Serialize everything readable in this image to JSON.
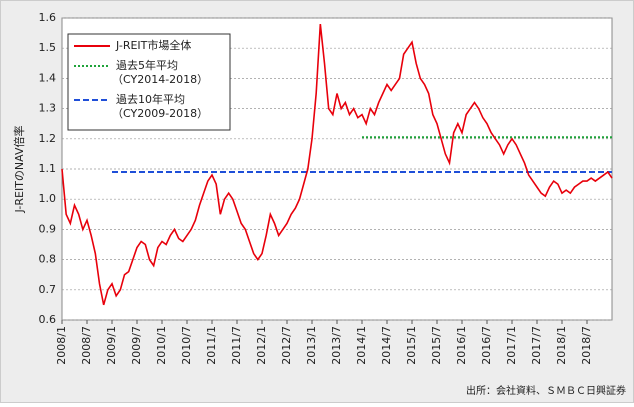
{
  "chart_data": {
    "type": "line",
    "y_label": "J-REITのNAV倍率",
    "source": "出所：会社資料、ＳＭＢＣ日興証券",
    "x": [
      "2008/1",
      "2008/2",
      "2008/3",
      "2008/4",
      "2008/5",
      "2008/6",
      "2008/7",
      "2008/8",
      "2008/9",
      "2008/10",
      "2008/11",
      "2008/12",
      "2009/1",
      "2009/2",
      "2009/3",
      "2009/4",
      "2009/5",
      "2009/6",
      "2009/7",
      "2009/8",
      "2009/9",
      "2009/10",
      "2009/11",
      "2009/12",
      "2010/1",
      "2010/2",
      "2010/3",
      "2010/4",
      "2010/5",
      "2010/6",
      "2010/7",
      "2010/8",
      "2010/9",
      "2010/10",
      "2010/11",
      "2010/12",
      "2011/1",
      "2011/2",
      "2011/3",
      "2011/4",
      "2011/5",
      "2011/6",
      "2011/7",
      "2011/8",
      "2011/9",
      "2011/10",
      "2011/11",
      "2011/12",
      "2012/1",
      "2012/2",
      "2012/3",
      "2012/4",
      "2012/5",
      "2012/6",
      "2012/7",
      "2012/8",
      "2012/9",
      "2012/10",
      "2012/11",
      "2012/12",
      "2013/1",
      "2013/2",
      "2013/3",
      "2013/4",
      "2013/5",
      "2013/6",
      "2013/7",
      "2013/8",
      "2013/9",
      "2013/10",
      "2013/11",
      "2013/12",
      "2014/1",
      "2014/2",
      "2014/3",
      "2014/4",
      "2014/5",
      "2014/6",
      "2014/7",
      "2014/8",
      "2014/9",
      "2014/10",
      "2014/11",
      "2014/12",
      "2015/1",
      "2015/2",
      "2015/3",
      "2015/4",
      "2015/5",
      "2015/6",
      "2015/7",
      "2015/8",
      "2015/9",
      "2015/10",
      "2015/11",
      "2015/12",
      "2016/1",
      "2016/2",
      "2016/3",
      "2016/4",
      "2016/5",
      "2016/6",
      "2016/7",
      "2016/8",
      "2016/9",
      "2016/10",
      "2016/11",
      "2016/12",
      "2017/1",
      "2017/2",
      "2017/3",
      "2017/4",
      "2017/5",
      "2017/6",
      "2017/7",
      "2017/8",
      "2017/9",
      "2017/10",
      "2017/11",
      "2017/12",
      "2018/1",
      "2018/2",
      "2018/3",
      "2018/4",
      "2018/5",
      "2018/6",
      "2018/7",
      "2018/8",
      "2018/9",
      "2018/10",
      "2018/11",
      "2018/12",
      "2019/1"
    ],
    "xticks": [
      "2008/1",
      "2008/7",
      "2009/1",
      "2009/7",
      "2010/1",
      "2010/7",
      "2011/1",
      "2011/7",
      "2012/1",
      "2012/7",
      "2013/1",
      "2013/7",
      "2014/1",
      "2014/7",
      "2015/1",
      "2015/7",
      "2016/1",
      "2016/7",
      "2017/1",
      "2017/7",
      "2018/1",
      "2018/7"
    ],
    "series": [
      {
        "name": "J-REIT市場全体",
        "color": "#e8000b",
        "values": [
          1.1,
          0.95,
          0.92,
          0.98,
          0.95,
          0.9,
          0.93,
          0.88,
          0.82,
          0.72,
          0.65,
          0.7,
          0.72,
          0.68,
          0.7,
          0.75,
          0.76,
          0.8,
          0.84,
          0.86,
          0.85,
          0.8,
          0.78,
          0.84,
          0.86,
          0.85,
          0.88,
          0.9,
          0.87,
          0.86,
          0.88,
          0.9,
          0.93,
          0.98,
          1.02,
          1.06,
          1.08,
          1.05,
          0.95,
          1.0,
          1.02,
          1.0,
          0.96,
          0.92,
          0.9,
          0.86,
          0.82,
          0.8,
          0.82,
          0.88,
          0.95,
          0.92,
          0.88,
          0.9,
          0.92,
          0.95,
          0.97,
          1.0,
          1.05,
          1.1,
          1.2,
          1.35,
          1.58,
          1.45,
          1.3,
          1.28,
          1.35,
          1.3,
          1.32,
          1.28,
          1.3,
          1.27,
          1.28,
          1.25,
          1.3,
          1.28,
          1.32,
          1.35,
          1.38,
          1.36,
          1.38,
          1.4,
          1.48,
          1.5,
          1.52,
          1.45,
          1.4,
          1.38,
          1.35,
          1.28,
          1.25,
          1.2,
          1.15,
          1.12,
          1.22,
          1.25,
          1.22,
          1.28,
          1.3,
          1.32,
          1.3,
          1.27,
          1.25,
          1.22,
          1.2,
          1.18,
          1.15,
          1.18,
          1.2,
          1.18,
          1.15,
          1.12,
          1.08,
          1.06,
          1.04,
          1.02,
          1.01,
          1.04,
          1.06,
          1.05,
          1.02,
          1.03,
          1.02,
          1.04,
          1.05,
          1.06,
          1.06,
          1.07,
          1.06,
          1.07,
          1.08,
          1.09,
          1.07
        ]
      }
    ],
    "hlines": [
      {
        "name": "過去5年平均",
        "period": "（CY2014-2018）",
        "color": "#1fa33a",
        "style": "dotted",
        "value": 1.205,
        "from": "2014/1",
        "to": "2019/1"
      },
      {
        "name": "過去10年平均",
        "period": "（CY2009-2018）",
        "color": "#1f4fd8",
        "style": "dashed",
        "value": 1.09,
        "from": "2009/1",
        "to": "2019/1"
      }
    ],
    "ylim": [
      0.6,
      1.6
    ],
    "yticks": [
      0.6,
      0.7,
      0.8,
      0.9,
      {
        "value": 1,
        "label": "1.0"
      },
      1.1,
      1.2,
      1.3,
      1.4,
      1.5,
      1.6
    ],
    "grid": true
  }
}
